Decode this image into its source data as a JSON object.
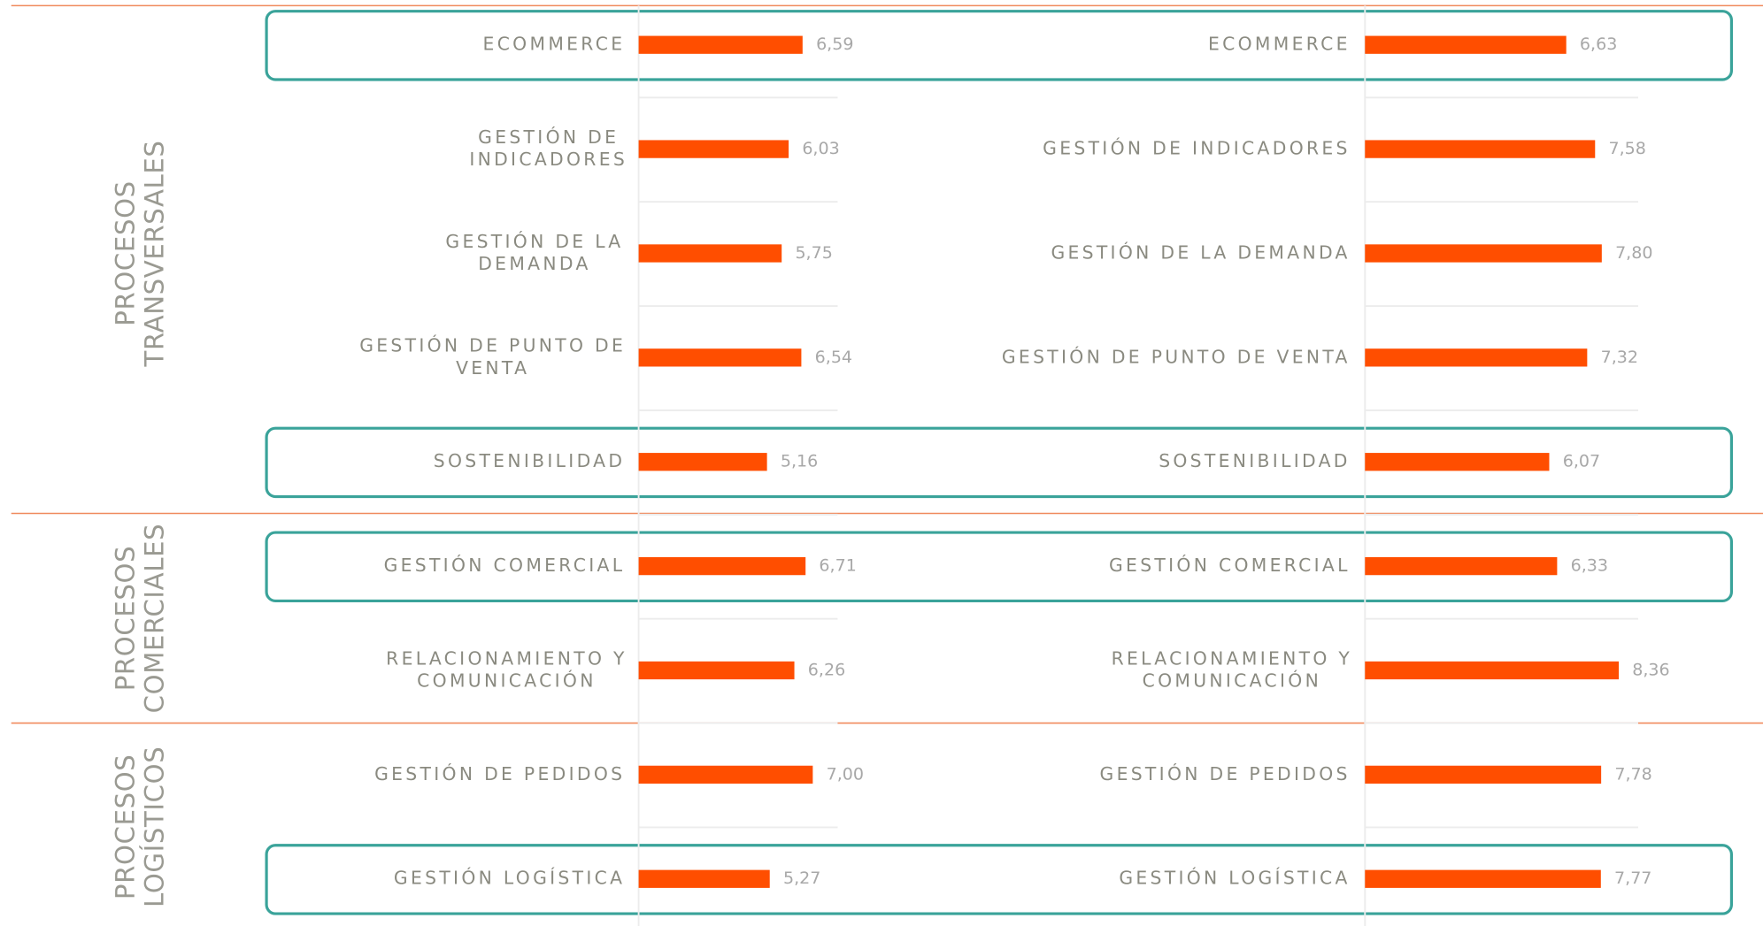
{
  "chart_data": [
    {
      "type": "hbar",
      "color": "#ff4e00",
      "xlim": [
        0,
        8
      ],
      "categories": [
        "ECOMMERCE",
        "GESTIÓN DE INDICADORES",
        "GESTIÓN DE LA DEMANDA",
        "GESTIÓN DE PUNTO DE VENTA",
        "SOSTENIBILIDAD",
        "GESTIÓN COMERCIAL",
        "RELACIONAMIENTO Y COMUNICACIÓN",
        "GESTIÓN DE PEDIDOS",
        "GESTIÓN LOGÍSTICA"
      ],
      "values": [
        6.59,
        6.03,
        5.75,
        6.54,
        5.16,
        6.71,
        6.26,
        7.0,
        5.27
      ],
      "value_labels": [
        "6,59",
        "6,03",
        "5,75",
        "6,54",
        "5,16",
        "6,71",
        "6,26",
        "7,00",
        "5,27"
      ]
    },
    {
      "type": "hbar",
      "color": "#ff4e00",
      "xlim": [
        0,
        9
      ],
      "categories": [
        "ECOMMERCE",
        "GESTIÓN DE INDICADORES",
        "GESTIÓN DE LA DEMANDA",
        "GESTIÓN DE PUNTO DE VENTA",
        "SOSTENIBILIDAD",
        "GESTIÓN COMERCIAL",
        "RELACIONAMIENTO Y COMUNICACIÓN",
        "GESTIÓN DE PEDIDOS",
        "GESTIÓN LOGÍSTICA"
      ],
      "values": [
        6.63,
        7.58,
        7.8,
        7.32,
        6.07,
        6.33,
        8.36,
        7.78,
        7.77
      ],
      "value_labels": [
        "6,63",
        "7,58",
        "7,80",
        "7,32",
        "6,07",
        "6,33",
        "8,36",
        "7,78",
        "7,77"
      ]
    }
  ],
  "groups": [
    "PROCESOS TRANSVERSALES",
    "PROCESOS COMERCIALES",
    "PROCESOS LOGÍSTICOS"
  ]
}
